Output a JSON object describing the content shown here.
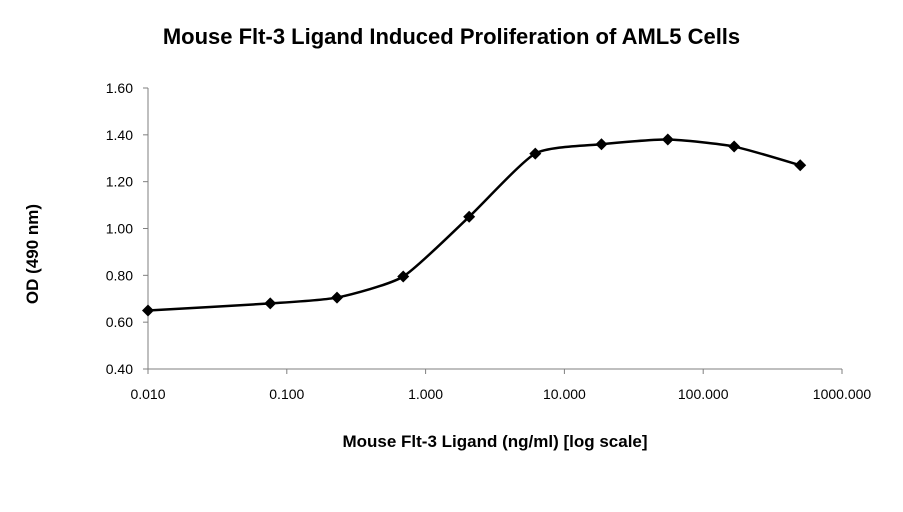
{
  "chart_data": {
    "type": "line",
    "title": "Mouse Flt-3 Ligand Induced Proliferation of AML5 Cells",
    "xlabel": "Mouse Flt-3 Ligand (ng/ml) [log scale]",
    "ylabel": "OD (490 nm)",
    "xscale": "log",
    "xlim": [
      0.01,
      1000
    ],
    "ylim": [
      0.4,
      1.6
    ],
    "grid": false,
    "legend": "none",
    "marker": "diamond",
    "line_color": "#000000",
    "x_tick_labels": [
      "0.010",
      "0.100",
      "1.000",
      "10.000",
      "100.000",
      "1000.000"
    ],
    "y_tick_labels": [
      "0.40",
      "0.60",
      "0.80",
      "1.00",
      "1.20",
      "1.40",
      "1.60"
    ],
    "series": [
      {
        "x": [
          0.01,
          0.076,
          0.23,
          0.69,
          2.06,
          6.17,
          18.5,
          55.6,
          167,
          500
        ],
        "y": [
          0.65,
          0.68,
          0.705,
          0.795,
          1.05,
          1.32,
          1.36,
          1.38,
          1.35,
          1.27
        ]
      }
    ]
  }
}
